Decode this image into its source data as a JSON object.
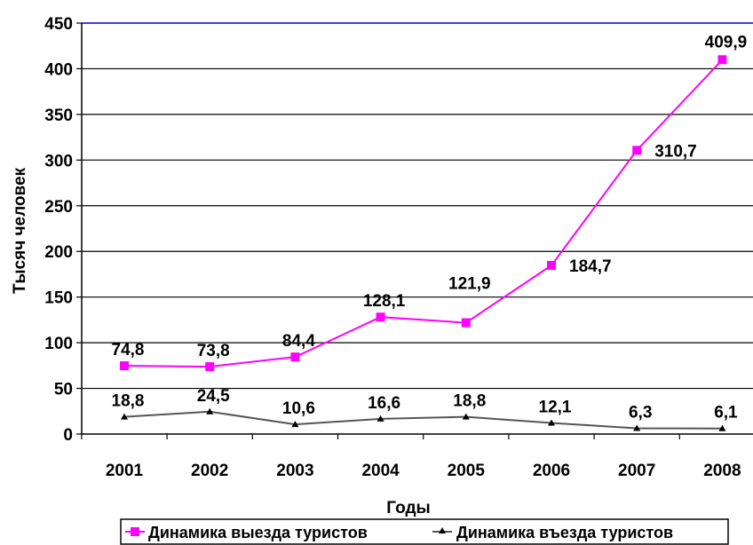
{
  "chart_data": {
    "type": "line",
    "categories": [
      "2001",
      "2002",
      "2003",
      "2004",
      "2005",
      "2006",
      "2007",
      "2008"
    ],
    "series": [
      {
        "name": "Динамика выезда туристов",
        "color": "#ff00ff",
        "marker": "square",
        "values": [
          74.8,
          73.8,
          84.4,
          128.1,
          121.9,
          184.7,
          310.7,
          409.9
        ],
        "labels": [
          "74,8",
          "73,8",
          "84,4",
          "128,1",
          "121,9",
          "184,7",
          "310,7",
          "409,9"
        ]
      },
      {
        "name": "Динамика въезда туристов",
        "color": "#555555",
        "marker": "triangle",
        "values": [
          18.8,
          24.5,
          10.6,
          16.6,
          18.8,
          12.1,
          6.3,
          6.1
        ],
        "labels": [
          "18,8",
          "24,5",
          "10,6",
          "16,6",
          "18,8",
          "12,1",
          "6,3",
          "6,1"
        ]
      }
    ],
    "xlabel": "Годы",
    "ylabel": "Тысяч человек",
    "ylim": [
      0,
      450
    ],
    "yticks": [
      0,
      50,
      100,
      150,
      200,
      250,
      300,
      350,
      400,
      450
    ],
    "grid": true,
    "legend_position": "bottom",
    "top_border_color": "#0000cc"
  }
}
